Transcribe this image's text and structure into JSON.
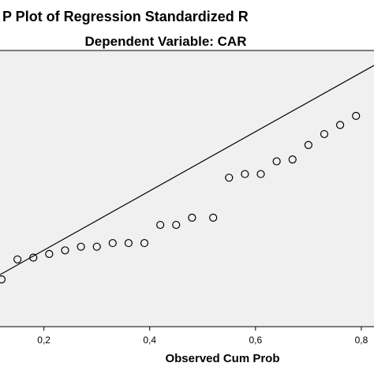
{
  "chart_data": {
    "type": "scatter",
    "title": "P Plot of Regression Standardized R",
    "subtitle": "Dependent Variable: CAR",
    "xlabel": "Observed Cum Prob",
    "ylabel": "",
    "x_ticks": [
      "0,2",
      "0,4",
      "0,6",
      "0,8"
    ],
    "x_tick_values": [
      0.2,
      0.4,
      0.6,
      0.8
    ],
    "xlim": [
      0.117,
      0.824
    ],
    "ylim": [
      0.09,
      0.85
    ],
    "grid": false,
    "reference_line": {
      "from": [
        0.117,
        0.233
      ],
      "to": [
        0.824,
        0.809
      ]
    },
    "x": [
      0.12,
      0.15,
      0.18,
      0.21,
      0.24,
      0.27,
      0.3,
      0.33,
      0.36,
      0.39,
      0.42,
      0.45,
      0.48,
      0.52,
      0.55,
      0.58,
      0.61,
      0.64,
      0.67,
      0.7,
      0.73,
      0.76,
      0.79
    ],
    "y": [
      0.22,
      0.275,
      0.28,
      0.29,
      0.3,
      0.31,
      0.31,
      0.32,
      0.32,
      0.32,
      0.37,
      0.37,
      0.39,
      0.39,
      0.5,
      0.51,
      0.51,
      0.545,
      0.55,
      0.59,
      0.62,
      0.645,
      0.67
    ],
    "background_color": "#f0f0f0",
    "marker": "hollow-circle",
    "colors": {
      "points": "#000000",
      "line": "#000000",
      "frame": "#000000"
    }
  }
}
